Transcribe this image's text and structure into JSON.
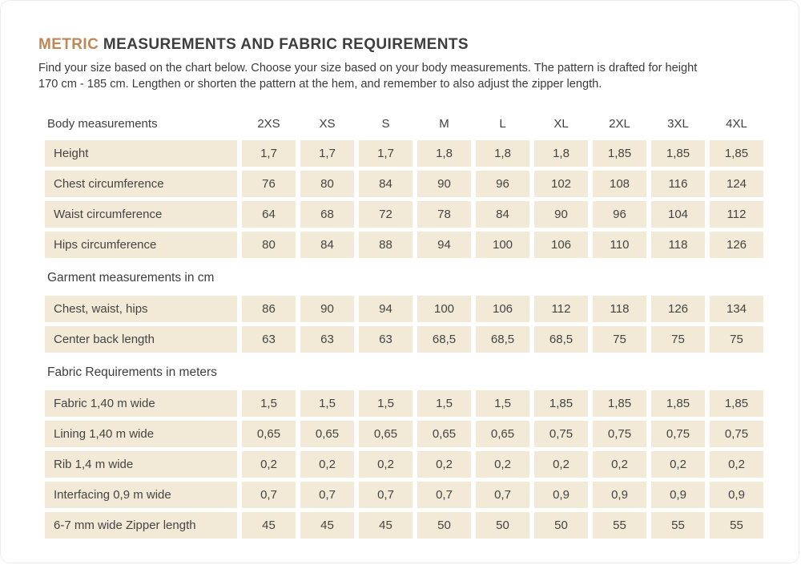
{
  "page": {
    "title_accent": "METRIC",
    "title_rest": " MEASUREMENTS AND FABRIC REQUIREMENTS",
    "intro_line1": "Find your size based on the chart below. Choose your size based on your body measurements. The pattern is drafted for height",
    "intro_line2": "170 cm - 185 cm.  Lengthen or shorten the pattern at the hem, and remember to also adjust the zipper length."
  },
  "colors": {
    "accent": "#bf8756",
    "cell_background": "#f2e9d6",
    "text": "#3e3e3e"
  },
  "table": {
    "header_label": "Body measurements",
    "sizes": [
      "2XS",
      "XS",
      "S",
      "M",
      "L",
      "XL",
      "2XL",
      "3XL",
      "4XL"
    ],
    "sections": [
      {
        "title": "",
        "rows": [
          {
            "label": "Height",
            "values": [
              "1,7",
              "1,7",
              "1,7",
              "1,8",
              "1,8",
              "1,8",
              "1,85",
              "1,85",
              "1,85"
            ]
          },
          {
            "label": "Chest circumference",
            "values": [
              "76",
              "80",
              "84",
              "90",
              "96",
              "102",
              "108",
              "116",
              "124"
            ]
          },
          {
            "label": "Waist circumference",
            "values": [
              "64",
              "68",
              "72",
              "78",
              "84",
              "90",
              "96",
              "104",
              "112"
            ]
          },
          {
            "label": "Hips circumference",
            "values": [
              "80",
              "84",
              "88",
              "94",
              "100",
              "106",
              "110",
              "118",
              "126"
            ]
          }
        ]
      },
      {
        "title": "Garment measurements in cm",
        "rows": [
          {
            "label": "Chest, waist, hips",
            "values": [
              "86",
              "90",
              "94",
              "100",
              "106",
              "112",
              "118",
              "126",
              "134"
            ]
          },
          {
            "label": "Center back length",
            "values": [
              "63",
              "63",
              "63",
              "68,5",
              "68,5",
              "68,5",
              "75",
              "75",
              "75"
            ]
          }
        ]
      },
      {
        "title": "Fabric Requirements in meters",
        "rows": [
          {
            "label": "Fabric 1,40 m wide",
            "values": [
              "1,5",
              "1,5",
              "1,5",
              "1,5",
              "1,5",
              "1,85",
              "1,85",
              "1,85",
              "1,85"
            ]
          },
          {
            "label": "Lining 1,40 m wide",
            "values": [
              "0,65",
              "0,65",
              "0,65",
              "0,65",
              "0,65",
              "0,75",
              "0,75",
              "0,75",
              "0,75"
            ]
          },
          {
            "label": "Rib 1,4 m wide",
            "values": [
              "0,2",
              "0,2",
              "0,2",
              "0,2",
              "0,2",
              "0,2",
              "0,2",
              "0,2",
              "0,2"
            ]
          },
          {
            "label": "Interfacing 0,9 m wide",
            "values": [
              "0,7",
              "0,7",
              "0,7",
              "0,7",
              "0,7",
              "0,9",
              "0,9",
              "0,9",
              "0,9"
            ]
          },
          {
            "label": "6-7 mm wide Zipper length",
            "values": [
              "45",
              "45",
              "45",
              "50",
              "50",
              "50",
              "55",
              "55",
              "55"
            ]
          }
        ]
      }
    ]
  }
}
